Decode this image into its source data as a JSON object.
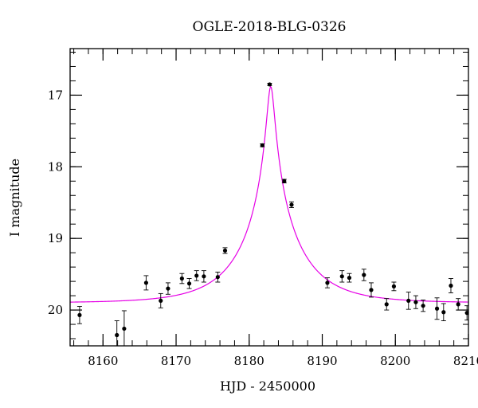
{
  "chart_data": {
    "type": "scatter",
    "title": "OGLE-2018-BLG-0326",
    "xlabel": "HJD - 2450000",
    "ylabel": "I magnitude",
    "xlim": [
      8155.5,
      8210
    ],
    "ylim": [
      20.5,
      16.35
    ],
    "y_inverted": true,
    "grid": false,
    "x_ticks": [
      8160,
      8170,
      8180,
      8190,
      8200,
      8210
    ],
    "x_tick_labels": [
      "8160",
      "8170",
      "8180",
      "8190",
      "8200",
      "8210"
    ],
    "y_ticks": [
      17,
      18,
      19,
      20
    ],
    "y_tick_labels": [
      "17",
      "18",
      "19",
      "20"
    ],
    "x_minor_step": 2,
    "y_minor_step": 0.2,
    "marker_color": "#000000",
    "model_color": "#e600e6",
    "model": {
      "type": "point-lens microlensing fit",
      "t0": 8182.95,
      "u0": 0.062,
      "tE": 7.8,
      "baseline_mag": 19.9
    },
    "points": [
      {
        "x": 8156.8,
        "y": 20.07,
        "err": 0.12
      },
      {
        "x": 8161.9,
        "y": 20.35,
        "err": 0.2
      },
      {
        "x": 8162.9,
        "y": 20.26,
        "err": 0.25
      },
      {
        "x": 8165.9,
        "y": 19.62,
        "err": 0.1
      },
      {
        "x": 8167.9,
        "y": 19.87,
        "err": 0.1
      },
      {
        "x": 8168.9,
        "y": 19.7,
        "err": 0.08
      },
      {
        "x": 8170.8,
        "y": 19.56,
        "err": 0.07
      },
      {
        "x": 8171.8,
        "y": 19.63,
        "err": 0.07
      },
      {
        "x": 8172.8,
        "y": 19.52,
        "err": 0.07
      },
      {
        "x": 8173.8,
        "y": 19.53,
        "err": 0.08
      },
      {
        "x": 8175.7,
        "y": 19.54,
        "err": 0.07
      },
      {
        "x": 8176.7,
        "y": 19.17,
        "err": 0.04
      },
      {
        "x": 8181.8,
        "y": 17.7,
        "err": 0.02
      },
      {
        "x": 8182.8,
        "y": 16.85,
        "err": 0.015
      },
      {
        "x": 8184.8,
        "y": 18.2,
        "err": 0.025
      },
      {
        "x": 8185.8,
        "y": 18.53,
        "err": 0.04
      },
      {
        "x": 8190.7,
        "y": 19.62,
        "err": 0.07
      },
      {
        "x": 8192.7,
        "y": 19.53,
        "err": 0.08
      },
      {
        "x": 8193.7,
        "y": 19.55,
        "err": 0.06
      },
      {
        "x": 8195.7,
        "y": 19.51,
        "err": 0.08
      },
      {
        "x": 8196.7,
        "y": 19.72,
        "err": 0.1
      },
      {
        "x": 8198.8,
        "y": 19.92,
        "err": 0.08
      },
      {
        "x": 8199.8,
        "y": 19.67,
        "err": 0.06
      },
      {
        "x": 8201.8,
        "y": 19.87,
        "err": 0.12
      },
      {
        "x": 8202.8,
        "y": 19.89,
        "err": 0.09
      },
      {
        "x": 8203.8,
        "y": 19.94,
        "err": 0.08
      },
      {
        "x": 8205.7,
        "y": 19.98,
        "err": 0.15
      },
      {
        "x": 8206.6,
        "y": 20.03,
        "err": 0.12
      },
      {
        "x": 8207.6,
        "y": 19.66,
        "err": 0.1
      },
      {
        "x": 8208.6,
        "y": 19.92,
        "err": 0.08
      },
      {
        "x": 8209.8,
        "y": 20.04,
        "err": 0.1
      }
    ]
  }
}
